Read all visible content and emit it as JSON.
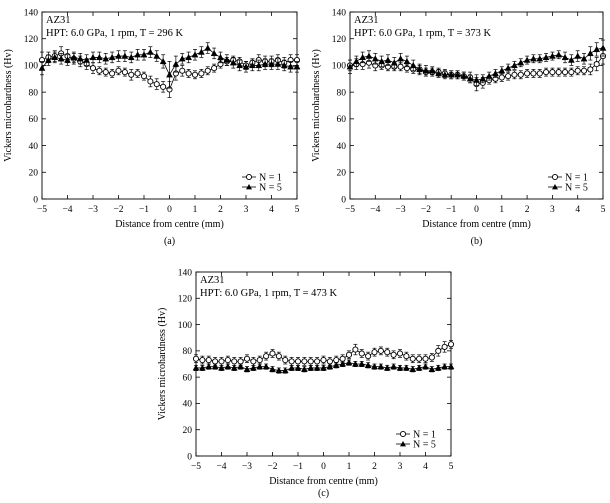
{
  "chart_data": [
    {
      "type": "line",
      "panel_label": "(a)",
      "annotation_lines": [
        "AZ31",
        "HPT: 6.0 GPa, 1 rpm, T = 296 K"
      ],
      "xlabel": "Distance from centre (mm)",
      "ylabel": "Vickers microhardness (Hv)",
      "xlim": [
        -5,
        5
      ],
      "ylim": [
        0,
        140
      ],
      "xticks": [
        -5,
        -4,
        -3,
        -2,
        -1,
        0,
        1,
        2,
        3,
        4,
        5
      ],
      "yticks": [
        0,
        20,
        40,
        60,
        80,
        100,
        120,
        140
      ],
      "legend_placement": "bottom-right",
      "grid": false,
      "series": [
        {
          "name": "N = 1",
          "marker": "open-circle",
          "x": [
            -5.0,
            -4.75,
            -4.5,
            -4.25,
            -4.0,
            -3.75,
            -3.5,
            -3.25,
            -3.0,
            -2.75,
            -2.5,
            -2.25,
            -2.0,
            -1.75,
            -1.5,
            -1.25,
            -1.0,
            -0.75,
            -0.5,
            -0.25,
            0.0,
            0.25,
            0.5,
            0.75,
            1.0,
            1.25,
            1.5,
            1.75,
            2.0,
            2.25,
            2.5,
            2.75,
            3.0,
            3.25,
            3.5,
            3.75,
            4.0,
            4.25,
            4.5,
            4.75,
            5.0
          ],
          "y": [
            104,
            106,
            107,
            109,
            107,
            105,
            103,
            101,
            98,
            96,
            95,
            94,
            96,
            95,
            93,
            94,
            92,
            88,
            86,
            84,
            82,
            94,
            96,
            94,
            93,
            94,
            96,
            98,
            101,
            103,
            104,
            103,
            100,
            102,
            104,
            103,
            103,
            104,
            102,
            104,
            104
          ],
          "err": [
            6,
            4,
            4,
            5,
            5,
            4,
            4,
            4,
            4,
            3,
            3,
            3,
            3,
            3,
            4,
            3,
            3,
            4,
            4,
            4,
            6,
            5,
            4,
            3,
            3,
            3,
            3,
            3,
            3,
            3,
            3,
            3,
            3,
            3,
            4,
            4,
            4,
            4,
            4,
            4,
            4
          ]
        },
        {
          "name": "N = 5",
          "marker": "filled-triangle",
          "x": [
            -5.0,
            -4.75,
            -4.5,
            -4.25,
            -4.0,
            -3.75,
            -3.5,
            -3.25,
            -3.0,
            -2.75,
            -2.5,
            -2.25,
            -2.0,
            -1.75,
            -1.5,
            -1.25,
            -1.0,
            -0.75,
            -0.5,
            -0.25,
            0.0,
            0.25,
            0.5,
            0.75,
            1.0,
            1.25,
            1.5,
            1.75,
            2.0,
            2.25,
            2.5,
            2.75,
            3.0,
            3.25,
            3.5,
            3.75,
            4.0,
            4.25,
            4.5,
            4.75,
            5.0
          ],
          "y": [
            98,
            104,
            106,
            105,
            104,
            106,
            105,
            104,
            106,
            106,
            105,
            106,
            107,
            107,
            106,
            108,
            108,
            110,
            107,
            103,
            93,
            101,
            105,
            106,
            108,
            110,
            113,
            109,
            106,
            104,
            102,
            100,
            99,
            100,
            100,
            101,
            101,
            101,
            100,
            99,
            99
          ],
          "err": [
            5,
            4,
            4,
            4,
            4,
            4,
            4,
            4,
            4,
            4,
            4,
            4,
            4,
            4,
            4,
            4,
            4,
            4,
            4,
            5,
            10,
            6,
            4,
            4,
            4,
            4,
            4,
            4,
            4,
            4,
            4,
            4,
            4,
            4,
            4,
            4,
            4,
            4,
            4,
            4,
            4
          ]
        }
      ]
    },
    {
      "type": "line",
      "panel_label": "(b)",
      "annotation_lines": [
        "AZ31",
        "HPT: 6.0 GPa, 1 rpm, T = 373 K"
      ],
      "xlabel": "Distance from centre (mm)",
      "ylabel": "Vickers microhardness (Hv)",
      "xlim": [
        -5,
        5
      ],
      "ylim": [
        0,
        140
      ],
      "xticks": [
        -5,
        -4,
        -3,
        -2,
        -1,
        0,
        1,
        2,
        3,
        4,
        5
      ],
      "yticks": [
        0,
        20,
        40,
        60,
        80,
        100,
        120,
        140
      ],
      "legend_placement": "bottom-right",
      "grid": false,
      "series": [
        {
          "name": "N = 1",
          "marker": "open-circle",
          "x": [
            -5.0,
            -4.75,
            -4.5,
            -4.25,
            -4.0,
            -3.75,
            -3.5,
            -3.25,
            -3.0,
            -2.75,
            -2.5,
            -2.25,
            -2.0,
            -1.75,
            -1.5,
            -1.25,
            -1.0,
            -0.75,
            -0.5,
            -0.25,
            0.0,
            0.25,
            0.5,
            0.75,
            1.0,
            1.25,
            1.5,
            1.75,
            2.0,
            2.25,
            2.5,
            2.75,
            3.0,
            3.25,
            3.5,
            3.75,
            4.0,
            4.25,
            4.5,
            4.75,
            5.0
          ],
          "y": [
            100,
            101,
            101,
            102,
            100,
            100,
            99,
            99,
            99,
            98,
            97,
            97,
            95,
            95,
            95,
            94,
            93,
            93,
            92,
            91,
            86,
            87,
            89,
            90,
            91,
            92,
            93,
            93,
            94,
            94,
            94,
            95,
            95,
            95,
            95,
            95,
            96,
            96,
            97,
            101,
            107
          ],
          "err": [
            4,
            4,
            4,
            4,
            4,
            3,
            3,
            3,
            3,
            3,
            3,
            3,
            3,
            3,
            3,
            3,
            3,
            3,
            3,
            4,
            5,
            4,
            3,
            3,
            3,
            3,
            3,
            3,
            3,
            3,
            3,
            3,
            3,
            3,
            3,
            3,
            3,
            3,
            4,
            5,
            6
          ]
        },
        {
          "name": "N = 5",
          "marker": "filled-triangle",
          "x": [
            -5.0,
            -4.75,
            -4.5,
            -4.25,
            -4.0,
            -3.75,
            -3.5,
            -3.25,
            -3.0,
            -2.75,
            -2.5,
            -2.25,
            -2.0,
            -1.75,
            -1.5,
            -1.25,
            -1.0,
            -0.75,
            -0.5,
            -0.25,
            0.0,
            0.25,
            0.5,
            0.75,
            1.0,
            1.25,
            1.5,
            1.75,
            2.0,
            2.25,
            2.5,
            2.75,
            3.0,
            3.25,
            3.5,
            3.75,
            4.0,
            4.25,
            4.5,
            4.75,
            5.0
          ],
          "y": [
            99,
            103,
            106,
            107,
            105,
            103,
            104,
            102,
            105,
            103,
            100,
            97,
            96,
            96,
            94,
            93,
            93,
            93,
            92,
            90,
            89,
            90,
            92,
            94,
            96,
            98,
            100,
            102,
            104,
            105,
            105,
            106,
            107,
            108,
            106,
            104,
            107,
            105,
            109,
            112,
            113
          ],
          "err": [
            5,
            4,
            4,
            4,
            4,
            4,
            4,
            4,
            4,
            4,
            4,
            4,
            4,
            3,
            3,
            3,
            3,
            3,
            3,
            3,
            4,
            3,
            3,
            3,
            3,
            3,
            3,
            3,
            3,
            3,
            3,
            3,
            3,
            3,
            4,
            4,
            4,
            4,
            5,
            5,
            6
          ]
        }
      ]
    },
    {
      "type": "line",
      "panel_label": "(c)",
      "annotation_lines": [
        "AZ31",
        "HPT: 6.0 GPa, 1 rpm, T = 473 K"
      ],
      "xlabel": "Distance from centre (mm)",
      "ylabel": "Vickers microhardness (Hv)",
      "xlim": [
        -5,
        5
      ],
      "ylim": [
        0,
        140
      ],
      "xticks": [
        -5,
        -4,
        -3,
        -2,
        -1,
        0,
        1,
        2,
        3,
        4,
        5
      ],
      "yticks": [
        0,
        20,
        40,
        60,
        80,
        100,
        120,
        140
      ],
      "legend_placement": "bottom-right",
      "grid": false,
      "series": [
        {
          "name": "N = 1",
          "marker": "open-circle",
          "x": [
            -5.0,
            -4.75,
            -4.5,
            -4.25,
            -4.0,
            -3.75,
            -3.5,
            -3.25,
            -3.0,
            -2.75,
            -2.5,
            -2.25,
            -2.0,
            -1.75,
            -1.5,
            -1.25,
            -1.0,
            -0.75,
            -0.5,
            -0.25,
            0.0,
            0.25,
            0.5,
            0.75,
            1.0,
            1.25,
            1.5,
            1.75,
            2.0,
            2.25,
            2.5,
            2.75,
            3.0,
            3.25,
            3.5,
            3.75,
            4.0,
            4.25,
            4.5,
            4.75,
            5.0
          ],
          "y": [
            74,
            73,
            73,
            72,
            72,
            73,
            72,
            72,
            74,
            72,
            73,
            76,
            78,
            76,
            73,
            72,
            72,
            72,
            72,
            72,
            73,
            72,
            73,
            74,
            77,
            81,
            78,
            76,
            79,
            80,
            79,
            77,
            78,
            76,
            74,
            74,
            74,
            75,
            80,
            83,
            85
          ],
          "err": [
            3,
            3,
            3,
            3,
            3,
            3,
            3,
            3,
            3,
            3,
            3,
            3,
            3,
            3,
            3,
            3,
            3,
            3,
            3,
            3,
            3,
            3,
            3,
            3,
            3,
            4,
            3,
            3,
            3,
            3,
            3,
            3,
            3,
            3,
            3,
            3,
            3,
            3,
            4,
            4,
            3
          ]
        },
        {
          "name": "N = 5",
          "marker": "filled-triangle",
          "x": [
            -5.0,
            -4.75,
            -4.5,
            -4.25,
            -4.0,
            -3.75,
            -3.5,
            -3.25,
            -3.0,
            -2.75,
            -2.5,
            -2.25,
            -2.0,
            -1.75,
            -1.5,
            -1.25,
            -1.0,
            -0.75,
            -0.5,
            -0.25,
            0.0,
            0.25,
            0.5,
            0.75,
            1.0,
            1.25,
            1.5,
            1.75,
            2.0,
            2.25,
            2.5,
            2.75,
            3.0,
            3.25,
            3.5,
            3.75,
            4.0,
            4.25,
            4.5,
            4.75,
            5.0
          ],
          "y": [
            67,
            67,
            68,
            68,
            67,
            68,
            67,
            68,
            66,
            67,
            68,
            68,
            66,
            65,
            65,
            67,
            67,
            66,
            67,
            67,
            67,
            68,
            69,
            70,
            71,
            70,
            70,
            69,
            68,
            68,
            67,
            68,
            67,
            67,
            66,
            67,
            68,
            66,
            67,
            68,
            68
          ],
          "err": [
            2,
            2,
            2,
            2,
            2,
            2,
            2,
            2,
            2,
            2,
            2,
            2,
            2,
            2,
            2,
            2,
            2,
            2,
            2,
            2,
            2,
            2,
            2,
            2,
            2,
            2,
            2,
            2,
            2,
            2,
            2,
            2,
            2,
            2,
            2,
            2,
            2,
            2,
            2,
            2,
            2
          ]
        }
      ]
    }
  ]
}
